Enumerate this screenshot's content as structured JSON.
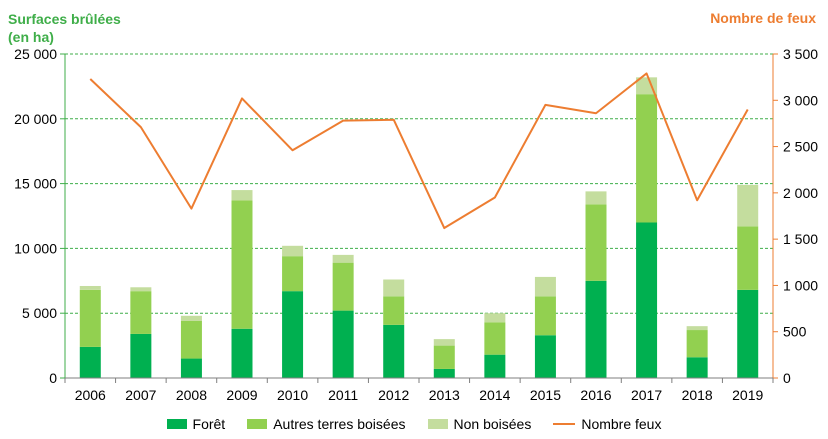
{
  "chart_data": {
    "type": "bar",
    "stacked": true,
    "y_axis_title_left": [
      "Surfaces brûlées",
      "(en ha)"
    ],
    "y_axis_title_right": "Nombre de feux",
    "categories": [
      "2006",
      "2007",
      "2008",
      "2009",
      "2010",
      "2011",
      "2012",
      "2013",
      "2014",
      "2015",
      "2016",
      "2017",
      "2018",
      "2019"
    ],
    "series": [
      {
        "name": "Forêt",
        "color": "#00b050",
        "values": [
          2400,
          3400,
          1500,
          3800,
          6700,
          5200,
          4100,
          700,
          1800,
          3300,
          7500,
          12000,
          1600,
          6800
        ]
      },
      {
        "name": "Autres terres boisées",
        "color": "#92d050",
        "values": [
          4400,
          3300,
          2900,
          9900,
          2700,
          3700,
          2200,
          1800,
          2500,
          3000,
          5900,
          9900,
          2100,
          4900
        ]
      },
      {
        "name": "Non boisées",
        "color": "#c4dd9e",
        "values": [
          300,
          300,
          400,
          800,
          800,
          600,
          1300,
          500,
          700,
          1500,
          1000,
          1300,
          300,
          3200
        ]
      }
    ],
    "line_series": {
      "name": "Nombre feux",
      "color": "#ed7d31",
      "values": [
        3230,
        2710,
        1830,
        3020,
        2460,
        2780,
        2790,
        1620,
        1950,
        2950,
        2860,
        3290,
        1920,
        2900
      ]
    },
    "ylim_left": [
      0,
      25000
    ],
    "ylim_right": [
      0,
      3500
    ],
    "yticks_left": [
      "0",
      "5 000",
      "10 000",
      "15 000",
      "20 000",
      "25 000"
    ],
    "yticks_right": [
      "0",
      "500",
      "1 000",
      "1 500",
      "2 000",
      "2 500",
      "3 000",
      "3 500"
    ],
    "grid": "dashed horizontal",
    "legend_position": "bottom"
  },
  "colors": {
    "left_title": "#3fae49",
    "right_title": "#ed7d31",
    "grid": "#3fae49"
  }
}
